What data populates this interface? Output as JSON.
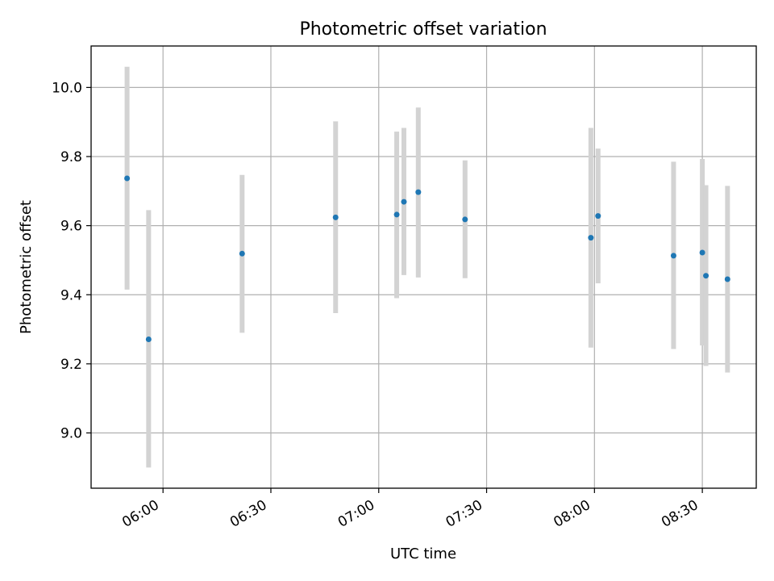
{
  "chart_data": {
    "type": "scatter",
    "title": "Photometric offset variation",
    "xlabel": "UTC time",
    "ylabel": "Photometric offset",
    "grid": true,
    "x_range": [
      "05:40",
      "08:45"
    ],
    "ylim": [
      8.84,
      10.12
    ],
    "x_ticks": [
      "06:00",
      "06:30",
      "07:00",
      "07:30",
      "08:00",
      "08:30"
    ],
    "y_ticks": [
      "9.0",
      "9.2",
      "9.4",
      "9.6",
      "9.8",
      "10.0"
    ],
    "colors": {
      "point": "#1f77b4",
      "errorbar": "#d3d3d3",
      "grid": "#b0b0b0"
    },
    "points": [
      {
        "x": "05:50",
        "y": 9.737,
        "ylow": 9.415,
        "yhigh": 10.06
      },
      {
        "x": "05:56",
        "y": 9.271,
        "ylow": 8.9,
        "yhigh": 9.645
      },
      {
        "x": "06:22",
        "y": 9.519,
        "ylow": 9.29,
        "yhigh": 9.747
      },
      {
        "x": "06:48",
        "y": 9.624,
        "ylow": 9.347,
        "yhigh": 9.902
      },
      {
        "x": "07:05",
        "y": 9.632,
        "ylow": 9.39,
        "yhigh": 9.872
      },
      {
        "x": "07:07",
        "y": 9.669,
        "ylow": 9.457,
        "yhigh": 9.883
      },
      {
        "x": "07:11",
        "y": 9.697,
        "ylow": 9.45,
        "yhigh": 9.942
      },
      {
        "x": "07:24",
        "y": 9.618,
        "ylow": 9.448,
        "yhigh": 9.789
      },
      {
        "x": "07:59",
        "y": 9.565,
        "ylow": 9.247,
        "yhigh": 9.883
      },
      {
        "x": "08:01",
        "y": 9.628,
        "ylow": 9.433,
        "yhigh": 9.823
      },
      {
        "x": "08:22",
        "y": 9.513,
        "ylow": 9.243,
        "yhigh": 9.785
      },
      {
        "x": "08:30",
        "y": 9.522,
        "ylow": 9.253,
        "yhigh": 9.793
      },
      {
        "x": "08:31",
        "y": 9.455,
        "ylow": 9.194,
        "yhigh": 9.717
      },
      {
        "x": "08:37",
        "y": 9.445,
        "ylow": 9.175,
        "yhigh": 9.715
      }
    ]
  }
}
